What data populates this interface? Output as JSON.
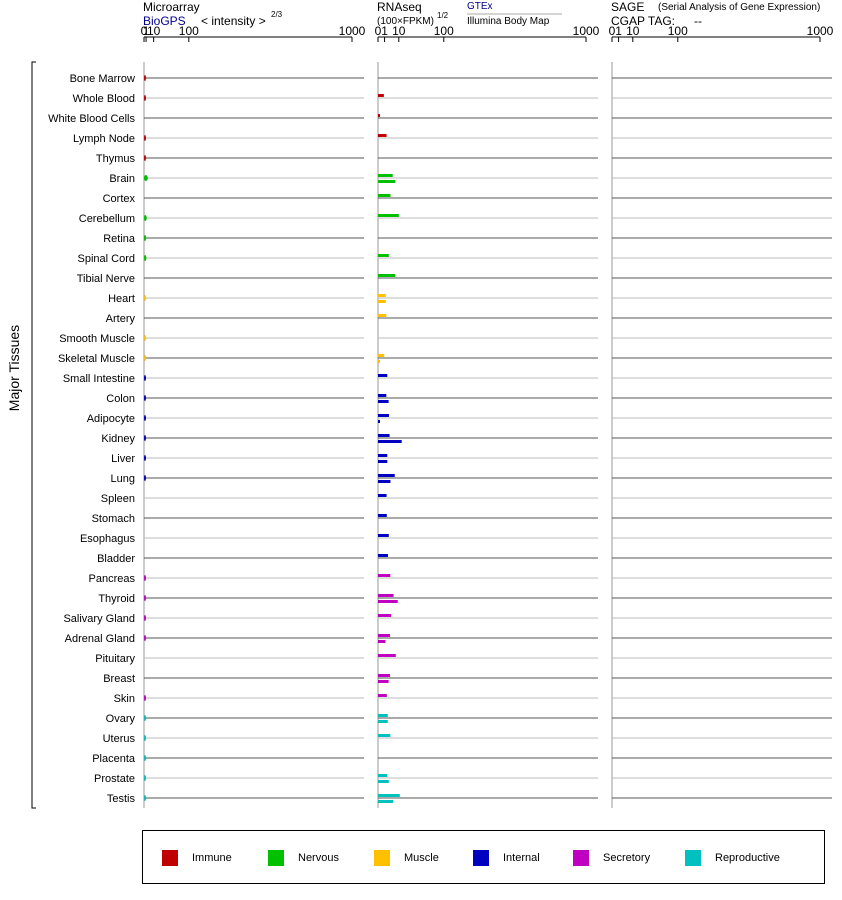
{
  "headers": {
    "microarray": {
      "title": "Microarray",
      "link": "BioGPS",
      "unit": "< intensity >",
      "exponent": "2/3"
    },
    "rnaseq": {
      "title": "RNAseq",
      "unit": "(100×FPKM)",
      "exponent": "1/2",
      "link_gtex": "GTEx",
      "link_ibm": "Illumina Body Map"
    },
    "sage": {
      "title": "SAGE",
      "subtitle": "(Serial Analysis of Gene Expression)",
      "tag_label": "CGAP TAG:",
      "tag_value": "--"
    }
  },
  "y_group_label": "Major Tissues",
  "legend": [
    {
      "name": "Immune",
      "color": "#c00000"
    },
    {
      "name": "Nervous",
      "color": "#00c000"
    },
    {
      "name": "Muscle",
      "color": "#ffc000"
    },
    {
      "name": "Internal",
      "color": "#0000c0"
    },
    {
      "name": "Secretory",
      "color": "#c000c0"
    },
    {
      "name": "Reproductive",
      "color": "#00c0c0"
    }
  ],
  "chart_data": {
    "type": "bar",
    "axis_ticks": [
      "0",
      "1",
      "10",
      "100",
      "1000"
    ],
    "axis_scale": "power (microarray 2/3, RNAseq 1/2)",
    "categories": [
      "Bone Marrow",
      "Whole Blood",
      "White Blood Cells",
      "Lymph Node",
      "Thymus",
      "Brain",
      "Cortex",
      "Cerebellum",
      "Retina",
      "Spinal Cord",
      "Tibial Nerve",
      "Heart",
      "Artery",
      "Smooth Muscle",
      "Skeletal Muscle",
      "Small Intestine",
      "Colon",
      "Adipocyte",
      "Kidney",
      "Liver",
      "Lung",
      "Spleen",
      "Stomach",
      "Esophagus",
      "Bladder",
      "Pancreas",
      "Thyroid",
      "Salivary Gland",
      "Adrenal Gland",
      "Pituitary",
      "Breast",
      "Skin",
      "Ovary",
      "Uterus",
      "Placenta",
      "Prostate",
      "Testis"
    ],
    "systems": [
      "Immune",
      "Immune",
      "Immune",
      "Immune",
      "Immune",
      "Nervous",
      "Nervous",
      "Nervous",
      "Nervous",
      "Nervous",
      "Nervous",
      "Muscle",
      "Muscle",
      "Muscle",
      "Muscle",
      "Internal",
      "Internal",
      "Internal",
      "Internal",
      "Internal",
      "Internal",
      "Internal",
      "Internal",
      "Internal",
      "Internal",
      "Secretory",
      "Secretory",
      "Secretory",
      "Secretory",
      "Secretory",
      "Secretory",
      "Secretory",
      "Reproductive",
      "Reproductive",
      "Reproductive",
      "Reproductive",
      "Reproductive"
    ],
    "series": [
      {
        "name": "BioGPS",
        "values": [
          0.5,
          0.5,
          null,
          0.4,
          0.35,
          2.5,
          null,
          1.5,
          1.0,
          1.2,
          null,
          0.6,
          null,
          0.45,
          0.55,
          0.45,
          0.45,
          0.45,
          0.4,
          0.55,
          0.5,
          null,
          null,
          null,
          null,
          0.4,
          0.6,
          0.4,
          0.45,
          null,
          null,
          0.45,
          0.4,
          0.45,
          0.45,
          0.5,
          0.5
        ]
      },
      {
        "name": "GTEx",
        "values": [
          null,
          0.8,
          0.02,
          1.7,
          null,
          5.0,
          3.6,
          10.0,
          null,
          2.7,
          6.8,
          1.4,
          1.6,
          null,
          0.9,
          2.0,
          1.6,
          2.8,
          3.1,
          2.0,
          6.5,
          1.7,
          1.8,
          2.7,
          2.3,
          3.5,
          5.6,
          4.0,
          3.3,
          7.3,
          3.3,
          1.8,
          2.2,
          3.5,
          null,
          2.0,
          11.0
        ]
      },
      {
        "name": "Illumina Body Map",
        "values": [
          null,
          null,
          null,
          null,
          null,
          7.0,
          null,
          null,
          null,
          null,
          null,
          1.4,
          null,
          null,
          0.01,
          null,
          2.6,
          0.02,
          13.0,
          2.0,
          3.6,
          null,
          null,
          null,
          null,
          null,
          9.0,
          null,
          1.3,
          null,
          2.6,
          null,
          2.2,
          null,
          null,
          2.7,
          5.3
        ]
      }
    ]
  }
}
